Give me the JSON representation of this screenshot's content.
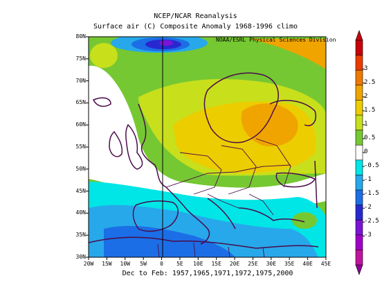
{
  "header": {
    "title_line1": "NCEP/NCAR Reanalysis",
    "title_line2": "Surface air (C) Composite Anomaly 1968-1996 climo"
  },
  "credit": "NOAA/ESRL Physical Sciences Division",
  "footer": "Dec to Feb: 1957,1965,1971,1972,1975,2000",
  "axes": {
    "lat_ticks": [
      "80N",
      "75N",
      "70N",
      "65N",
      "60N",
      "55N",
      "50N",
      "45N",
      "40N",
      "35N",
      "30N"
    ],
    "lon_ticks": [
      "20W",
      "15W",
      "10W",
      "5W",
      "0",
      "5E",
      "10E",
      "15E",
      "20E",
      "25E",
      "30E",
      "35E",
      "40E",
      "45E"
    ]
  },
  "colorbar": {
    "labels": [
      "3",
      "2.5",
      "2",
      "1.5",
      "1",
      "0.5",
      "0",
      "-0.5",
      "-1",
      "-1.5",
      "-2",
      "-2.5",
      "-3"
    ],
    "colors": [
      "#c8000a",
      "#eb3a00",
      "#f07800",
      "#f0a400",
      "#eccd00",
      "#c8df1c",
      "#76c832",
      "#ffffff",
      "#00e6e6",
      "#27a8ea",
      "#1c6ee6",
      "#2828d0",
      "#7a14d6",
      "#a000c8",
      "#c0149c"
    ]
  },
  "map_colors": {
    "neg1": "#00e6e6",
    "neg2": "#27a8ea",
    "neg3": "#1c6ee6",
    "pos1": "#76c832",
    "pos2": "#c8df1c",
    "pos3": "#eccd00",
    "pos4": "#f0a400",
    "pos5": "#f07800",
    "neg_deep": "#2828d0",
    "neg_purple": "#7a14d6",
    "coast": "#4a0a4a"
  }
}
